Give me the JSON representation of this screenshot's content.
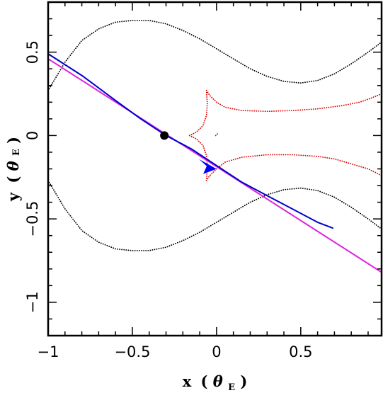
{
  "chart_data": {
    "type": "line",
    "title": "",
    "xlabel": {
      "main": "x",
      "paren_open": "(",
      "symbol": "θ",
      "sub": "E",
      "paren_close": ")"
    },
    "ylabel": {
      "main": "y",
      "paren_open": "(",
      "symbol": "θ",
      "sub": "E",
      "paren_close": ")"
    },
    "xlim": [
      -1.0,
      0.98
    ],
    "ylim": [
      -1.2,
      0.8
    ],
    "xticks": [
      {
        "value": -1,
        "label": "−1"
      },
      {
        "value": -0.5,
        "label": "−0.5"
      },
      {
        "value": 0,
        "label": "0"
      },
      {
        "value": 0.5,
        "label": "0.5"
      }
    ],
    "yticks": [
      {
        "value": -1,
        "label": "−1"
      },
      {
        "value": -0.5,
        "label": "−0.5"
      },
      {
        "value": 0,
        "label": "0"
      },
      {
        "value": 0.5,
        "label": "0.5"
      }
    ],
    "grid": false,
    "series": [
      {
        "kind": "critical-curve-upper",
        "color": "#000000",
        "style": "dotted",
        "points": [
          [
            -1.0,
            0.27
          ],
          [
            -0.9,
            0.44
          ],
          [
            -0.8,
            0.57
          ],
          [
            -0.7,
            0.64
          ],
          [
            -0.6,
            0.68
          ],
          [
            -0.5,
            0.69
          ],
          [
            -0.4,
            0.69
          ],
          [
            -0.3,
            0.67
          ],
          [
            -0.2,
            0.63
          ],
          [
            -0.1,
            0.58
          ],
          [
            0.0,
            0.52
          ],
          [
            0.1,
            0.46
          ],
          [
            0.2,
            0.4
          ],
          [
            0.3,
            0.355
          ],
          [
            0.4,
            0.325
          ],
          [
            0.5,
            0.315
          ],
          [
            0.6,
            0.33
          ],
          [
            0.7,
            0.37
          ],
          [
            0.8,
            0.43
          ],
          [
            0.9,
            0.5
          ],
          [
            0.98,
            0.56
          ]
        ]
      },
      {
        "kind": "critical-curve-lower",
        "color": "#000000",
        "style": "dotted",
        "points": [
          [
            -1.0,
            -0.27
          ],
          [
            -0.9,
            -0.44
          ],
          [
            -0.8,
            -0.57
          ],
          [
            -0.7,
            -0.64
          ],
          [
            -0.6,
            -0.68
          ],
          [
            -0.5,
            -0.69
          ],
          [
            -0.4,
            -0.69
          ],
          [
            -0.3,
            -0.67
          ],
          [
            -0.2,
            -0.63
          ],
          [
            -0.1,
            -0.58
          ],
          [
            0.0,
            -0.52
          ],
          [
            0.1,
            -0.46
          ],
          [
            0.2,
            -0.4
          ],
          [
            0.3,
            -0.355
          ],
          [
            0.4,
            -0.325
          ],
          [
            0.5,
            -0.315
          ],
          [
            0.6,
            -0.33
          ],
          [
            0.7,
            -0.37
          ],
          [
            0.8,
            -0.43
          ],
          [
            0.9,
            -0.5
          ],
          [
            0.98,
            -0.56
          ]
        ]
      },
      {
        "kind": "caustic-upper",
        "color": "#dd0000",
        "style": "dotted",
        "points": [
          [
            -0.16,
            0.0
          ],
          [
            -0.12,
            0.02
          ],
          [
            -0.08,
            0.06
          ],
          [
            -0.06,
            0.12
          ],
          [
            -0.055,
            0.19
          ],
          [
            -0.06,
            0.27
          ],
          [
            -0.04,
            0.24
          ],
          [
            0.0,
            0.2
          ],
          [
            0.05,
            0.17
          ],
          [
            0.15,
            0.15
          ],
          [
            0.3,
            0.145
          ],
          [
            0.45,
            0.15
          ],
          [
            0.6,
            0.16
          ],
          [
            0.75,
            0.18
          ],
          [
            0.85,
            0.2
          ],
          [
            0.92,
            0.225
          ],
          [
            0.98,
            0.25
          ]
        ]
      },
      {
        "kind": "caustic-lower",
        "color": "#dd0000",
        "style": "dotted",
        "points": [
          [
            -0.16,
            0.0
          ],
          [
            -0.12,
            -0.02
          ],
          [
            -0.08,
            -0.06
          ],
          [
            -0.06,
            -0.12
          ],
          [
            -0.055,
            -0.19
          ],
          [
            -0.06,
            -0.27
          ],
          [
            -0.04,
            -0.24
          ],
          [
            0.0,
            -0.2
          ],
          [
            0.05,
            -0.16
          ],
          [
            0.15,
            -0.13
          ],
          [
            0.3,
            -0.115
          ],
          [
            0.45,
            -0.115
          ],
          [
            0.6,
            -0.125
          ],
          [
            0.7,
            -0.14
          ],
          [
            0.8,
            -0.17
          ],
          [
            0.9,
            -0.2
          ],
          [
            0.98,
            -0.24
          ]
        ]
      },
      {
        "kind": "caustic-dot",
        "color": "#dd0000",
        "style": "dotted",
        "points": [
          [
            -0.005,
            0.0
          ],
          [
            0.005,
            0.01
          ]
        ]
      },
      {
        "kind": "source-trajectory-straight",
        "color": "#dd22dd",
        "style": "solid",
        "points": [
          [
            -1.0,
            0.46
          ],
          [
            0.98,
            -0.82
          ]
        ]
      },
      {
        "kind": "source-trajectory-curved",
        "color": "#0000cc",
        "style": "solid",
        "points": [
          [
            -1.0,
            0.49
          ],
          [
            -0.8,
            0.36
          ],
          [
            -0.6,
            0.21
          ],
          [
            -0.45,
            0.1
          ],
          [
            -0.3,
            0.0
          ],
          [
            -0.15,
            -0.08
          ],
          [
            0.0,
            -0.18
          ],
          [
            0.15,
            -0.28
          ],
          [
            0.3,
            -0.36
          ],
          [
            0.45,
            -0.44
          ],
          [
            0.6,
            -0.52
          ],
          [
            0.69,
            -0.555
          ]
        ]
      }
    ],
    "markers": [
      {
        "kind": "lens-position",
        "shape": "circle",
        "color": "#000000",
        "x": -0.31,
        "y": 0.0
      },
      {
        "kind": "direction-arrow",
        "shape": "arrow",
        "color": "#0000ff",
        "x": -0.05,
        "y": -0.175
      }
    ]
  }
}
